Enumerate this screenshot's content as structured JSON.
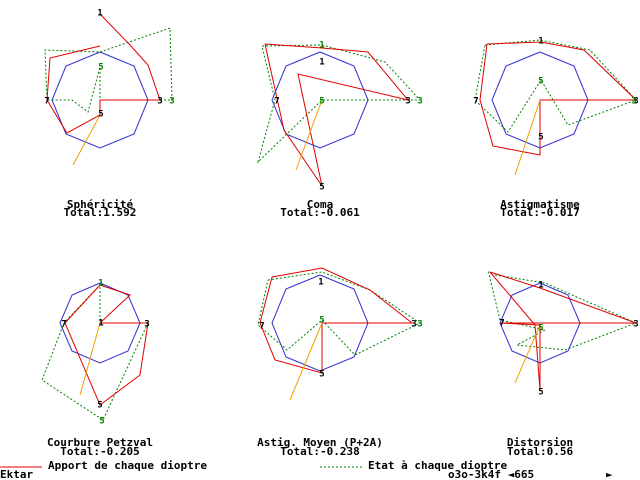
{
  "panels": [
    {
      "title": "Sphéricité",
      "total": "Total:1.592",
      "labels": [
        "1",
        "3",
        "3",
        "5",
        "5",
        "7"
      ]
    },
    {
      "title": "Coma",
      "total": "Total:-0.061",
      "labels": [
        "1",
        "1",
        "3",
        "3",
        "5",
        "5",
        "7"
      ]
    },
    {
      "title": "Astigmatisme",
      "total": "Total:-0.017",
      "labels": [
        "1",
        "3",
        "3",
        "5",
        "5",
        "7"
      ]
    },
    {
      "title": "Courbure Petzval",
      "total": "Total:-0.205",
      "labels": [
        "1",
        "1",
        "3",
        "5",
        "5",
        "7"
      ]
    },
    {
      "title": "Astig. Moyen (P+2A)",
      "total": "Total:-0.238",
      "labels": [
        "1",
        "3",
        "3",
        "5",
        "5",
        "7"
      ]
    },
    {
      "title": "Distorsion",
      "total": "Total:0.56",
      "labels": [
        "1",
        "3",
        "5",
        "5",
        "7"
      ]
    }
  ],
  "legend": {
    "red": "Apport de chaque dioptre",
    "green": "Etat à chaque dioptre"
  },
  "footer": {
    "left": "Ektar",
    "mid": "o3o-3k4f ◄665",
    "right": "►"
  }
}
